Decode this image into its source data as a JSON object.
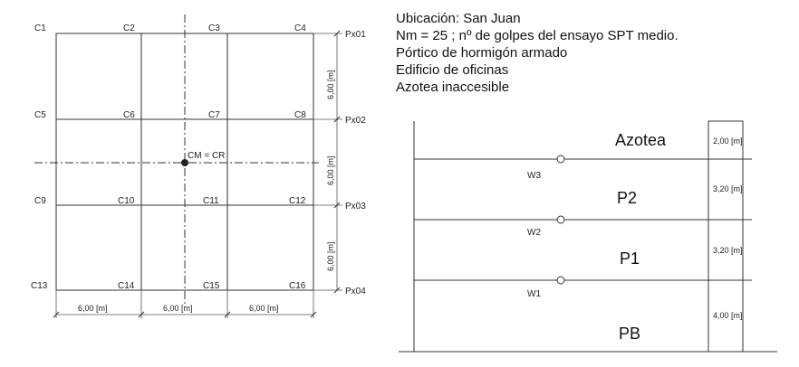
{
  "plan": {
    "columns": [
      "C1",
      "C2",
      "C3",
      "C4",
      "C5",
      "C6",
      "C7",
      "C8",
      "C9",
      "C10",
      "C11",
      "C12",
      "C13",
      "C14",
      "C15",
      "C16"
    ],
    "portico_labels": [
      "Px01",
      "Px02",
      "Px03",
      "Px04"
    ],
    "vertical_dims": [
      "6,00 [m]",
      "6,00 [m]",
      "6,00 [m]"
    ],
    "horizontal_dims": [
      "6,00 [m]",
      "6,00 [m]",
      "6,00 [m]"
    ],
    "center_label": "CM = CR"
  },
  "info": {
    "lines": [
      "Ubicación: San Juan",
      "Nm = 25 ; nº de golpes del ensayo SPT medio.",
      "Pórtico de hormigón armado",
      "Edificio de oficinas",
      "Azotea inaccesible"
    ]
  },
  "elevation": {
    "floors": [
      "Azotea",
      "P2",
      "P1",
      "PB"
    ],
    "forces": [
      "W3",
      "W2",
      "W1"
    ],
    "heights": [
      "2,00 [m]",
      "3,20 [m]",
      "3,20 [m]",
      "4,00 [m]"
    ]
  }
}
